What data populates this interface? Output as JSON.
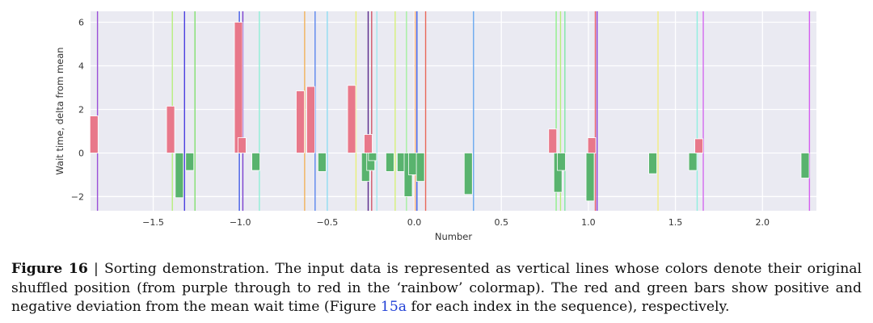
{
  "chart_data": {
    "type": "bar",
    "xlabel": "Number",
    "ylabel": "Wait time, delta from mean",
    "xlim": [
      -1.86,
      2.31
    ],
    "ylim": [
      -2.65,
      6.5
    ],
    "xticks": [
      -1.5,
      -1.0,
      -0.5,
      0.0,
      0.5,
      1.0,
      1.5,
      2.0
    ],
    "xtick_labels": [
      "−1.5",
      "−1.0",
      "−0.5",
      "0.0",
      "0.5",
      "1.0",
      "1.5",
      "2.0"
    ],
    "yticks": [
      -2,
      0,
      2,
      4,
      6
    ],
    "ytick_labels": [
      "−2",
      "0",
      "2",
      "4",
      "6"
    ],
    "grid": true,
    "background": "#eaeaf2",
    "positive_color": "#e8788a",
    "negative_color": "#59b36e",
    "lines": [
      {
        "x": -1.82,
        "color": "#9b4fd8"
      },
      {
        "x": -1.39,
        "color": "#b6ef7e"
      },
      {
        "x": -1.32,
        "color": "#4a3ee0"
      },
      {
        "x": -1.26,
        "color": "#82e070"
      },
      {
        "x": -1.005,
        "color": "#3f59e6"
      },
      {
        "x": -0.985,
        "color": "#7a3fd0"
      },
      {
        "x": -0.89,
        "color": "#8ff0d6"
      },
      {
        "x": -0.63,
        "color": "#f2b25a"
      },
      {
        "x": -0.57,
        "color": "#5b86ee"
      },
      {
        "x": -0.5,
        "color": "#8fdcf2"
      },
      {
        "x": -0.335,
        "color": "#e8f07a"
      },
      {
        "x": -0.265,
        "color": "#5a2a8a"
      },
      {
        "x": -0.245,
        "color": "#d05a6a"
      },
      {
        "x": -0.215,
        "color": "#9fe8ef"
      },
      {
        "x": -0.11,
        "color": "#d6f07a"
      },
      {
        "x": -0.045,
        "color": "#a4f0a0"
      },
      {
        "x": 0.005,
        "color": "#f2ad7e"
      },
      {
        "x": 0.015,
        "color": "#3f5fe8"
      },
      {
        "x": 0.065,
        "color": "#e9685a"
      },
      {
        "x": 0.34,
        "color": "#69a8f0"
      },
      {
        "x": 0.815,
        "color": "#8ff08a"
      },
      {
        "x": 0.84,
        "color": "#b7f07a"
      },
      {
        "x": 0.865,
        "color": "#80e7a5"
      },
      {
        "x": 1.04,
        "color": "#e65a6a"
      },
      {
        "x": 1.05,
        "color": "#8a3ed8"
      },
      {
        "x": 1.4,
        "color": "#f2ee80"
      },
      {
        "x": 1.625,
        "color": "#8fefe0"
      },
      {
        "x": 1.66,
        "color": "#d46af0"
      },
      {
        "x": 2.27,
        "color": "#d55ef0"
      }
    ],
    "bars": [
      {
        "x": -1.84,
        "value": 1.7
      },
      {
        "x": -1.4,
        "value": 2.15
      },
      {
        "x": -1.35,
        "value": -2.05
      },
      {
        "x": -1.29,
        "value": -0.8
      },
      {
        "x": -1.01,
        "value": 6.0
      },
      {
        "x": -0.99,
        "value": 0.7
      },
      {
        "x": -0.91,
        "value": -0.8
      },
      {
        "x": -0.655,
        "value": 2.85
      },
      {
        "x": -0.595,
        "value": 3.05
      },
      {
        "x": -0.53,
        "value": -0.85
      },
      {
        "x": -0.36,
        "value": 3.1
      },
      {
        "x": -0.28,
        "value": -1.3
      },
      {
        "x": -0.265,
        "value": 0.85
      },
      {
        "x": -0.25,
        "value": -0.8
      },
      {
        "x": -0.24,
        "value": -0.35
      },
      {
        "x": -0.14,
        "value": -0.85
      },
      {
        "x": -0.075,
        "value": -0.85
      },
      {
        "x": -0.035,
        "value": -2.0
      },
      {
        "x": -0.01,
        "value": -1.0
      },
      {
        "x": 0.035,
        "value": -1.3
      },
      {
        "x": 0.31,
        "value": -1.9
      },
      {
        "x": 0.795,
        "value": 1.1
      },
      {
        "x": 0.825,
        "value": -1.8
      },
      {
        "x": 0.845,
        "value": -0.8
      },
      {
        "x": 1.01,
        "value": -2.2
      },
      {
        "x": 1.02,
        "value": 0.7
      },
      {
        "x": 1.37,
        "value": -0.95
      },
      {
        "x": 1.6,
        "value": -0.8
      },
      {
        "x": 1.635,
        "value": 0.65
      },
      {
        "x": 2.245,
        "value": -1.15
      }
    ]
  },
  "caption": {
    "label": "Figure 16",
    "separator": " | ",
    "text_before_link": "Sorting demonstration.  The input data is represented as vertical lines whose colors denote their original shuffled position (from purple through to red in the ‘rainbow’ colormap). The red and green bars show positive and negative deviation from the mean wait time (Figure ",
    "link_text": "15a",
    "text_after_link": " for each index in the sequence), respectively."
  }
}
